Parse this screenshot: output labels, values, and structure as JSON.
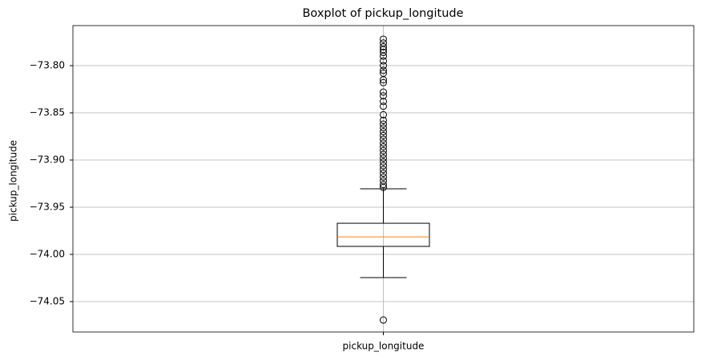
{
  "chart_data": {
    "type": "boxplot",
    "title": "Boxplot of pickup_longitude",
    "ylabel": "pickup_longitude",
    "categories": [
      "pickup_longitude"
    ],
    "boxes": [
      {
        "whislo": -74.0246,
        "q1": -73.9915,
        "med": -73.9814,
        "q3": -73.967,
        "whishi": -73.9305,
        "fliers": [
          -73.772,
          -73.776,
          -73.78,
          -73.783,
          -73.786,
          -73.79,
          -73.795,
          -73.8,
          -73.805,
          -73.808,
          -73.815,
          -73.818,
          -73.828,
          -73.832,
          -73.838,
          -73.843,
          -73.852,
          -73.858,
          -73.862,
          -73.866,
          -73.87,
          -73.874,
          -73.878,
          -73.882,
          -73.886,
          -73.89,
          -73.894,
          -73.898,
          -73.902,
          -73.906,
          -73.91,
          -73.914,
          -73.918,
          -73.922,
          -73.926,
          -73.929,
          -74.0695
        ]
      }
    ],
    "box_color": "#000000",
    "median_color": "#ff7f0e",
    "ylim": [
      -74.0822,
      -73.7576
    ],
    "yticks": [
      {
        "value": -73.8,
        "label": "−73.80"
      },
      {
        "value": -73.85,
        "label": "−73.85"
      },
      {
        "value": -73.9,
        "label": "−73.90"
      },
      {
        "value": -73.95,
        "label": "−73.95"
      },
      {
        "value": -74.0,
        "label": "−74.00"
      },
      {
        "value": -74.05,
        "label": "−74.05"
      }
    ],
    "grid": true
  }
}
